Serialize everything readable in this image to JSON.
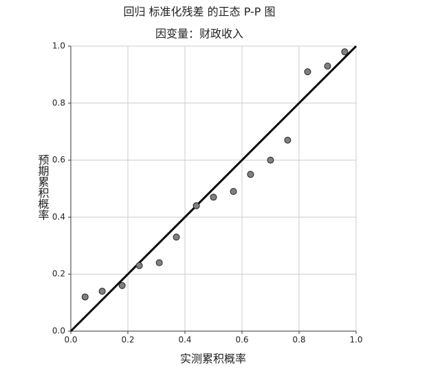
{
  "chart_data": {
    "type": "scatter",
    "title": "回归 标准化残差 的正态 P-P 图",
    "subtitle": "因变量：财政收入",
    "x_label": "实测累积概率",
    "y_label": "预期累积概率",
    "x": [
      0.05,
      0.11,
      0.18,
      0.24,
      0.31,
      0.37,
      0.44,
      0.5,
      0.57,
      0.63,
      0.7,
      0.76,
      0.83,
      0.9,
      0.96
    ],
    "values": [
      0.12,
      0.14,
      0.16,
      0.23,
      0.24,
      0.33,
      0.44,
      0.47,
      0.49,
      0.55,
      0.6,
      0.67,
      0.91,
      0.93,
      0.98
    ],
    "color": "#808080",
    "xlim": [
      0,
      1
    ],
    "ylim": [
      0,
      1
    ],
    "xticks": [
      {
        "value": 0,
        "label": "0.0"
      },
      0.2,
      0.4,
      0.6,
      0.8,
      {
        "value": 1,
        "label": "1.0"
      }
    ],
    "yticks": [
      {
        "value": 0,
        "label": "0.0"
      },
      0.2,
      0.4,
      0.6,
      0.8,
      {
        "value": 1,
        "label": "1.0"
      }
    ],
    "grid": true
  }
}
